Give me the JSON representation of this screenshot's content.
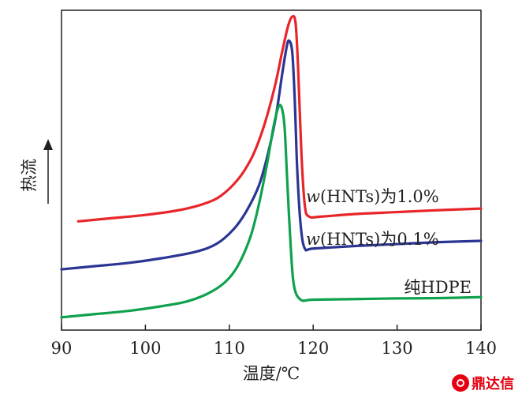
{
  "chart_data": {
    "type": "line",
    "title": "",
    "xlabel": "温度/℃",
    "ylabel": "热流",
    "xlim": [
      90,
      140
    ],
    "ylim": [
      0,
      100
    ],
    "xticks": [
      "90",
      "100",
      "110",
      "120",
      "130",
      "140"
    ],
    "grid": false,
    "legend": "inline labels",
    "series": [
      {
        "name": "w(HNTs)为1.0%",
        "label_prefix": "w",
        "label_rest": "(HNTs)为1.0%",
        "color": "#e8262a",
        "x": [
          92,
          96,
          100,
          104,
          107,
          109,
          111,
          112.5,
          113.5,
          114.5,
          115.5,
          116.3,
          117,
          117.5,
          117.9,
          118.2,
          118.6,
          119,
          119.5,
          121,
          125,
          130,
          135,
          140
        ],
        "y": [
          34,
          35,
          36,
          37.5,
          39.5,
          42,
          47,
          53,
          59,
          67,
          77,
          87,
          95,
          98,
          96,
          82,
          55,
          39,
          35.5,
          35.5,
          36.3,
          36.9,
          37.5,
          38
        ]
      },
      {
        "name": "w(HNTs)为0.1%",
        "label_prefix": "w",
        "label_rest": "(HNTs)为0.1%",
        "color": "#2b3593",
        "x": [
          90,
          94,
          98,
          102,
          106,
          108.5,
          110.5,
          112,
          113.5,
          114.5,
          115.5,
          116.3,
          116.8,
          117.1,
          117.5,
          117.8,
          118.1,
          118.5,
          119,
          120,
          125,
          130,
          135,
          140
        ],
        "y": [
          19,
          20,
          21,
          22.5,
          24.5,
          27,
          31.5,
          37,
          45,
          54,
          66,
          80,
          88,
          90.5,
          87,
          72,
          50,
          33,
          25.5,
          25.5,
          26.3,
          26.9,
          27.5,
          27.9
        ]
      },
      {
        "name": "纯HDPE",
        "label_prefix": "",
        "label_rest": "纯HDPE",
        "color": "#0fa14d",
        "x": [
          90,
          94,
          98,
          102,
          105,
          107.5,
          109.5,
          111,
          112.5,
          113.5,
          114.5,
          115.3,
          115.9,
          116.3,
          116.6,
          116.9,
          117.3,
          117.7,
          118.5,
          120,
          125,
          130,
          135,
          140
        ],
        "y": [
          4,
          5,
          6,
          7.5,
          9,
          11.5,
          15,
          20,
          29,
          39,
          52,
          64,
          70,
          69,
          63,
          47,
          27,
          14,
          9.5,
          9.5,
          9.7,
          9.9,
          10,
          10.3
        ]
      }
    ]
  },
  "watermark": {
    "text": "鼎达信",
    "color": "#e60012"
  }
}
